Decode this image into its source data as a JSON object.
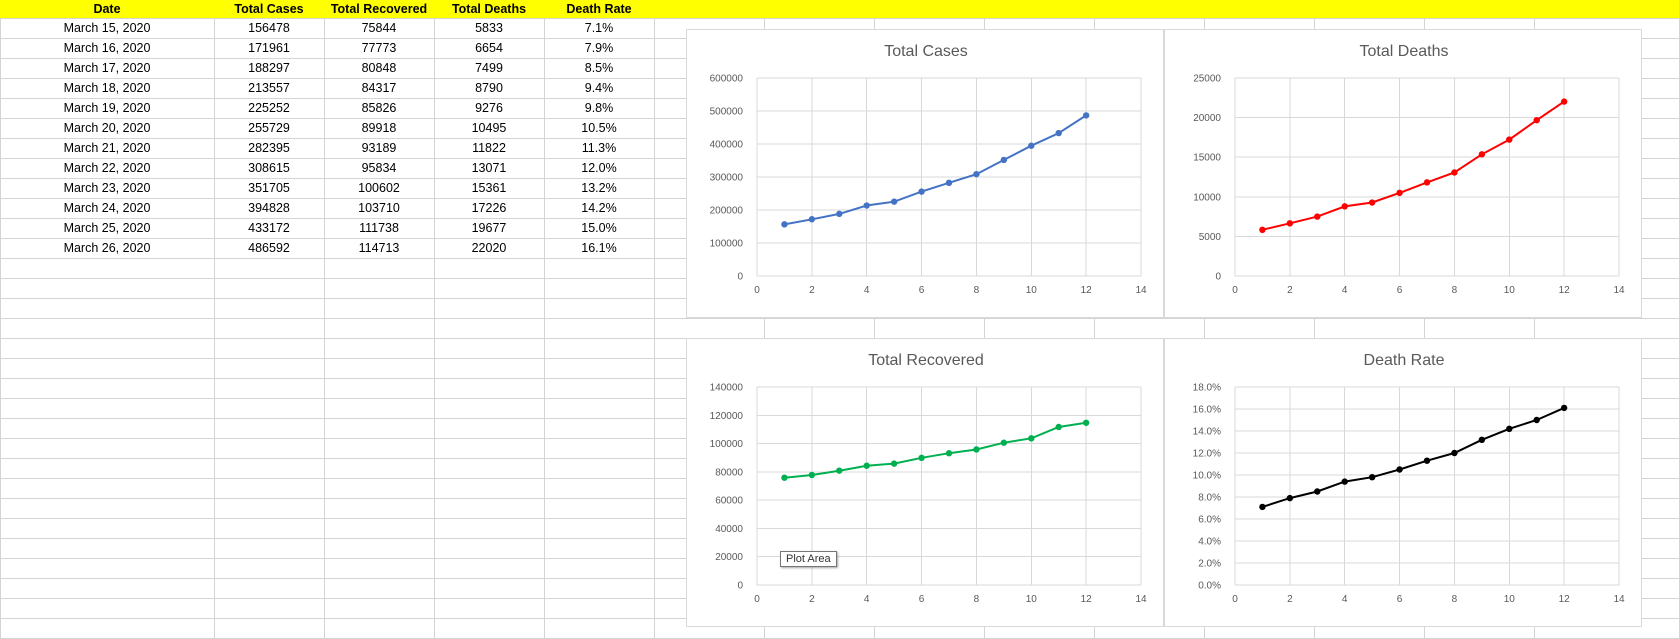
{
  "spreadsheet": {
    "headers": [
      "Date",
      "Total Cases",
      "Total Recovered",
      "Total Deaths",
      "Death Rate"
    ],
    "rows": [
      [
        "March 15, 2020",
        "156478",
        "75844",
        "5833",
        "7.1%"
      ],
      [
        "March 16, 2020",
        "171961",
        "77773",
        "6654",
        "7.9%"
      ],
      [
        "March 17, 2020",
        "188297",
        "80848",
        "7499",
        "8.5%"
      ],
      [
        "March 18, 2020",
        "213557",
        "84317",
        "8790",
        "9.4%"
      ],
      [
        "March 19, 2020",
        "225252",
        "85826",
        "9276",
        "9.8%"
      ],
      [
        "March 20, 2020",
        "255729",
        "89918",
        "10495",
        "10.5%"
      ],
      [
        "March 21, 2020",
        "282395",
        "93189",
        "11822",
        "11.3%"
      ],
      [
        "March 22, 2020",
        "308615",
        "95834",
        "13071",
        "12.0%"
      ],
      [
        "March 23, 2020",
        "351705",
        "100602",
        "15361",
        "13.2%"
      ],
      [
        "March 24, 2020",
        "394828",
        "103710",
        "17226",
        "14.2%"
      ],
      [
        "March 25, 2020",
        "433172",
        "111738",
        "19677",
        "15.0%"
      ],
      [
        "March 26, 2020",
        "486592",
        "114713",
        "22020",
        "16.1%"
      ]
    ],
    "header_fill": "#ffff00"
  },
  "tooltip": "Plot Area",
  "chart_data": [
    {
      "type": "line",
      "title": "Total Cases",
      "x": [
        1,
        2,
        3,
        4,
        5,
        6,
        7,
        8,
        9,
        10,
        11,
        12
      ],
      "series": [
        {
          "values": [
            156478,
            171961,
            188297,
            213557,
            225252,
            255729,
            282395,
            308615,
            351705,
            394828,
            433172,
            486592
          ],
          "color": "#4472c4"
        }
      ],
      "xlim": [
        0,
        14
      ],
      "xticks": [
        0,
        2,
        4,
        6,
        8,
        10,
        12,
        14
      ],
      "ylim": [
        0,
        600000
      ],
      "yticks": [
        "0",
        "100000",
        "200000",
        "300000",
        "400000",
        "500000",
        "600000"
      ],
      "grid": true
    },
    {
      "type": "line",
      "title": "Total Deaths",
      "x": [
        1,
        2,
        3,
        4,
        5,
        6,
        7,
        8,
        9,
        10,
        11,
        12
      ],
      "series": [
        {
          "values": [
            5833,
            6654,
            7499,
            8790,
            9276,
            10495,
            11822,
            13071,
            15361,
            17226,
            19677,
            22020
          ],
          "color": "#ff0000"
        }
      ],
      "xlim": [
        0,
        14
      ],
      "xticks": [
        0,
        2,
        4,
        6,
        8,
        10,
        12,
        14
      ],
      "ylim": [
        0,
        25000
      ],
      "yticks": [
        "0",
        "5000",
        "10000",
        "15000",
        "20000",
        "25000"
      ],
      "grid": true
    },
    {
      "type": "line",
      "title": "Total Recovered",
      "x": [
        1,
        2,
        3,
        4,
        5,
        6,
        7,
        8,
        9,
        10,
        11,
        12
      ],
      "series": [
        {
          "values": [
            75844,
            77773,
            80848,
            84317,
            85826,
            89918,
            93189,
            95834,
            100602,
            103710,
            111738,
            114713
          ],
          "color": "#00b050"
        }
      ],
      "xlim": [
        0,
        14
      ],
      "xticks": [
        0,
        2,
        4,
        6,
        8,
        10,
        12,
        14
      ],
      "ylim": [
        0,
        140000
      ],
      "yticks": [
        "0",
        "20000",
        "40000",
        "60000",
        "80000",
        "100000",
        "120000",
        "140000"
      ],
      "grid": true
    },
    {
      "type": "line",
      "title": "Death Rate",
      "x": [
        1,
        2,
        3,
        4,
        5,
        6,
        7,
        8,
        9,
        10,
        11,
        12
      ],
      "series": [
        {
          "values": [
            7.1,
            7.9,
            8.5,
            9.4,
            9.8,
            10.5,
            11.3,
            12.0,
            13.2,
            14.2,
            15.0,
            16.1
          ],
          "color": "#000000"
        }
      ],
      "xlim": [
        0,
        14
      ],
      "xticks": [
        0,
        2,
        4,
        6,
        8,
        10,
        12,
        14
      ],
      "ylim": [
        0,
        18
      ],
      "yticks": [
        "0.0%",
        "2.0%",
        "4.0%",
        "6.0%",
        "8.0%",
        "10.0%",
        "12.0%",
        "14.0%",
        "16.0%",
        "18.0%"
      ],
      "grid": true
    }
  ]
}
